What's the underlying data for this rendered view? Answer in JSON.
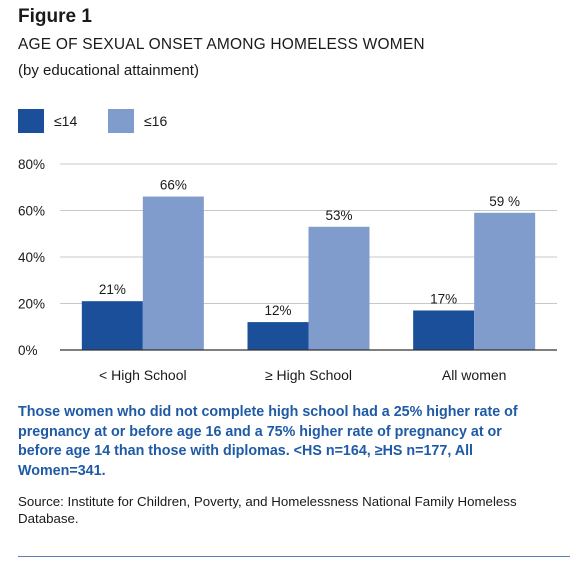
{
  "figure_label": "Figure 1",
  "footnote": "Those women who did not complete high school had a 25% higher rate of pregnancy at or before age 16 and a 75% higher rate of pregnancy at or before age 14 than those with diplomas. <HS n=164, ≥HS n=177, All Women=341.",
  "source": "Source: Institute for Children, Poverty, and Homelessness National Family Homeless Database.",
  "colors": {
    "series_1": "#1c4f9a",
    "series_2": "#7f9ccc",
    "grid": "#c8c8c8",
    "caption": "#1f5aa6"
  },
  "chart_data": {
    "type": "bar",
    "title": "AGE OF SEXUAL ONSET AMONG HOMELESS WOMEN",
    "subtitle": "(by educational attainment)",
    "categories": [
      "< High School",
      "≥ High School",
      "All women"
    ],
    "series": [
      {
        "name": "≤14",
        "values": [
          21,
          12,
          17
        ],
        "labels": [
          "21%",
          "12%",
          "17%"
        ]
      },
      {
        "name": "≤16",
        "values": [
          66,
          53,
          59
        ],
        "labels": [
          "66%",
          "53%",
          "59 %"
        ]
      }
    ],
    "ylim": [
      0,
      80
    ],
    "yticks": [
      0,
      20,
      40,
      60,
      80
    ],
    "ytick_labels": [
      "0%",
      "20%",
      "40%",
      "60%",
      "80%"
    ],
    "grid": true,
    "legend_position": "top-left"
  }
}
